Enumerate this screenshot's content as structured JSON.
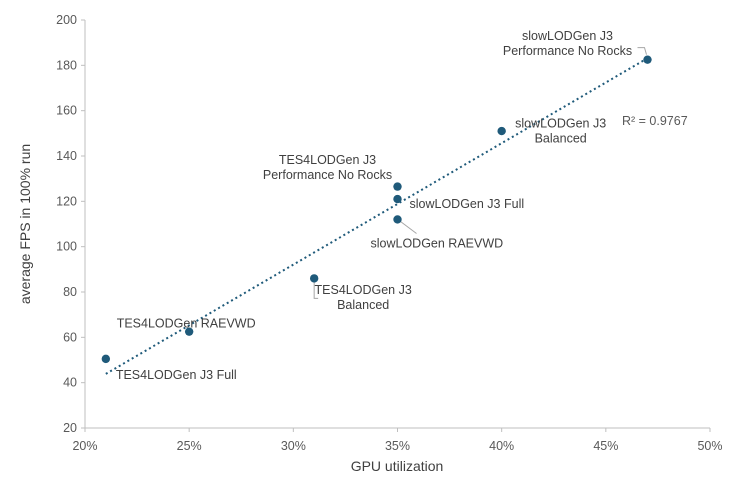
{
  "chart_data": {
    "type": "scatter",
    "title": "",
    "xlabel": "GPU utilization",
    "ylabel": "average FPS in 100% run",
    "xlim": [
      0.2,
      0.5
    ],
    "ylim": [
      20,
      200
    ],
    "x_tick_values": [
      0.2,
      0.25,
      0.3,
      0.35,
      0.4,
      0.45,
      0.5
    ],
    "x_tick_labels": [
      "20%",
      "25%",
      "30%",
      "35%",
      "40%",
      "45%",
      "50%"
    ],
    "y_tick_values": [
      20,
      40,
      60,
      80,
      100,
      120,
      140,
      160,
      180,
      200
    ],
    "y_tick_labels": [
      "20",
      "40",
      "60",
      "80",
      "100",
      "120",
      "140",
      "160",
      "180",
      "200"
    ],
    "grid": false,
    "marker_color": "#1f5a7a",
    "trendline": {
      "type": "linear",
      "style": "dotted",
      "color": "#1f5a7a",
      "r_squared_label": "R² = 0.9767",
      "x_range": [
        0.21,
        0.47
      ]
    },
    "points": [
      {
        "x": 0.21,
        "y": 50.5,
        "label": [
          "TES4LODGen J3 Full"
        ]
      },
      {
        "x": 0.25,
        "y": 62.5,
        "label": [
          "TES4LODGen RAEVWD"
        ]
      },
      {
        "x": 0.31,
        "y": 86,
        "label": [
          "TES4LODGen J3",
          "Balanced"
        ]
      },
      {
        "x": 0.35,
        "y": 126.5,
        "label": [
          "TES4LODGen J3",
          "Performance No Rocks"
        ]
      },
      {
        "x": 0.35,
        "y": 121,
        "label": [
          "slowLODGen J3 Full"
        ]
      },
      {
        "x": 0.35,
        "y": 112,
        "label": [
          "slowLODGen RAEVWD"
        ]
      },
      {
        "x": 0.4,
        "y": 151,
        "label": [
          "slowLODGen J3",
          "Balanced"
        ]
      },
      {
        "x": 0.47,
        "y": 182.5,
        "label": [
          "slowLODGen J3",
          "Performance No Rocks"
        ]
      }
    ]
  }
}
